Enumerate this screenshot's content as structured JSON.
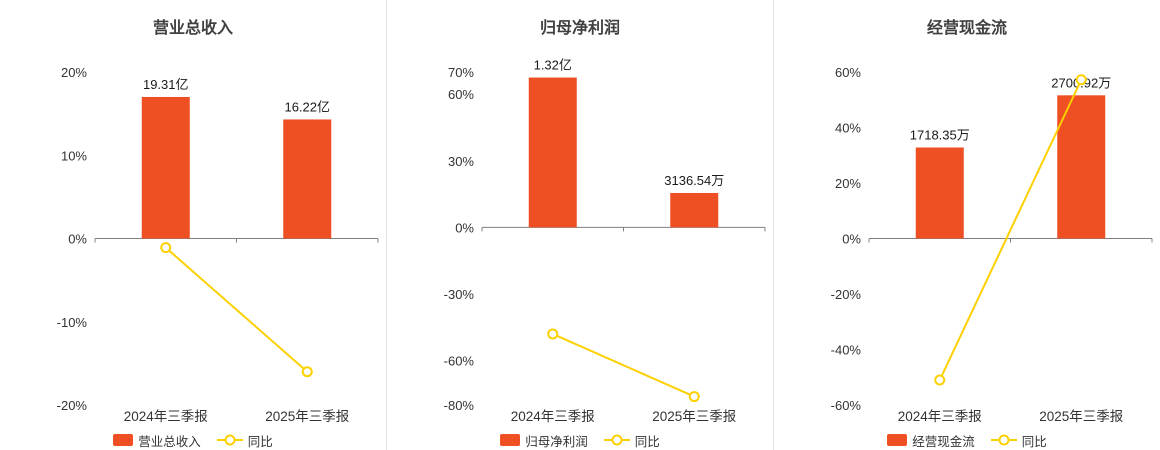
{
  "colors": {
    "bar": "#ee4f23",
    "line": "#fdd000",
    "marker_fill": "#ffffff",
    "axis_line": "#808080",
    "divider": "#e4e4e4",
    "title_text": "#404040",
    "tick_text": "#333333"
  },
  "categories": [
    "2024年三季报",
    "2025年三季报"
  ],
  "chart_data": [
    {
      "type": "bar+line",
      "title": "营业总收入",
      "categories": [
        "2024年三季报",
        "2025年三季报"
      ],
      "bar_series": {
        "name": "营业总收入",
        "labels": [
          "19.31亿",
          "16.22亿"
        ],
        "plotted_pct": [
          17.0,
          14.3
        ]
      },
      "line_series": {
        "name": "同比",
        "values_pct": [
          -1.1,
          -16.0
        ]
      },
      "yticks": [
        20,
        10,
        0,
        -10,
        -20
      ],
      "ylim": [
        -20,
        20
      ],
      "tick_suffix": "%"
    },
    {
      "type": "bar+line",
      "title": "归母净利润",
      "categories": [
        "2024年三季报",
        "2025年三季报"
      ],
      "bar_series": {
        "name": "归母净利润",
        "labels": [
          "1.32亿",
          "3136.54万"
        ],
        "plotted_pct": [
          67.5,
          15.5
        ]
      },
      "line_series": {
        "name": "同比",
        "values_pct": [
          -48.0,
          -76.2
        ]
      },
      "yticks": [
        70,
        60,
        30,
        0,
        -30,
        -60,
        -80
      ],
      "ylim": [
        -80,
        70
      ],
      "tick_suffix": "%"
    },
    {
      "type": "bar+line",
      "title": "经营现金流",
      "categories": [
        "2024年三季报",
        "2025年三季报"
      ],
      "bar_series": {
        "name": "经营现金流",
        "labels": [
          "1718.35万",
          "2700.92万"
        ],
        "plotted_pct": [
          32.8,
          51.6
        ]
      },
      "line_series": {
        "name": "同比",
        "values_pct": [
          -51.0,
          57.2
        ]
      },
      "yticks": [
        60,
        40,
        20,
        0,
        -20,
        -40,
        -60
      ],
      "ylim": [
        -60,
        60
      ],
      "tick_suffix": "%"
    }
  ]
}
